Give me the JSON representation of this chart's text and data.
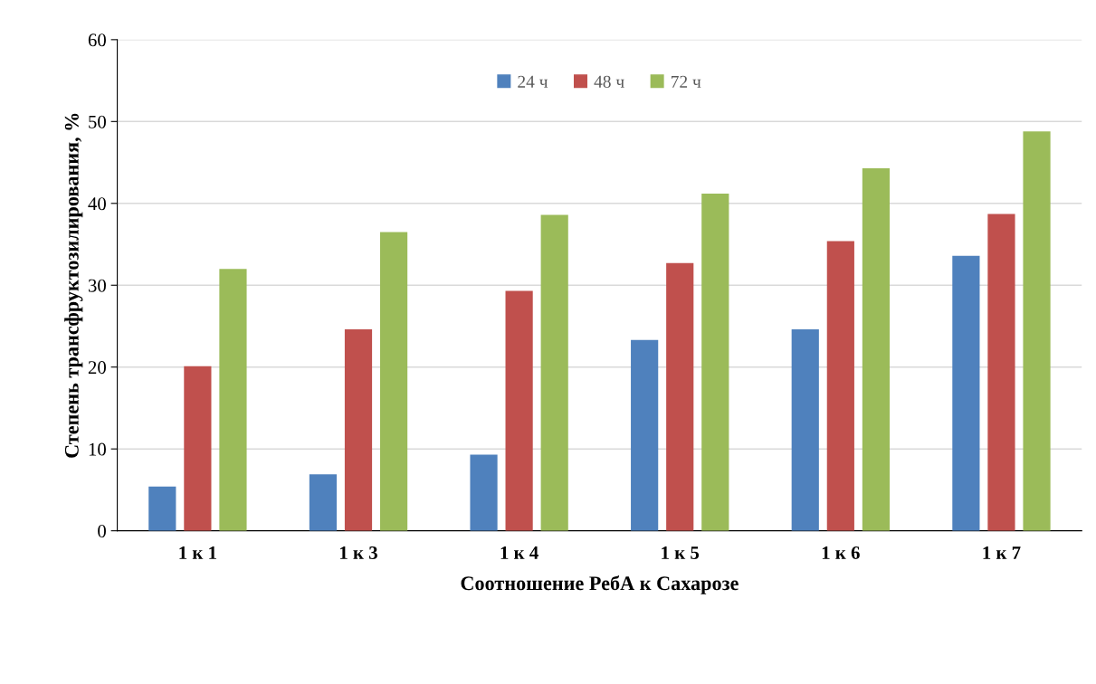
{
  "chart_data": {
    "type": "bar",
    "xlabel": "Соотношение РебА к Сахарозе",
    "ylabel": "Степень трансфруктозилирования, %",
    "categories": [
      "1 к 1",
      "1 к 3",
      "1 к 4",
      "1 к 5",
      "1 к 6",
      "1 к 7"
    ],
    "series": [
      {
        "name": "24 ч",
        "color": "#4f81bd",
        "values": [
          5.4,
          6.9,
          9.3,
          23.3,
          24.6,
          33.6
        ]
      },
      {
        "name": "48 ч",
        "color": "#c0504d",
        "values": [
          20.1,
          24.6,
          29.3,
          32.7,
          35.4,
          38.7
        ]
      },
      {
        "name": "72 ч",
        "color": "#9bbb59",
        "values": [
          32.0,
          36.5,
          38.6,
          41.2,
          44.3,
          48.8
        ]
      }
    ],
    "ylim": [
      0,
      60
    ],
    "yticks": [
      0,
      10,
      20,
      30,
      40,
      50,
      60
    ],
    "grid": "y",
    "legend": "top"
  }
}
